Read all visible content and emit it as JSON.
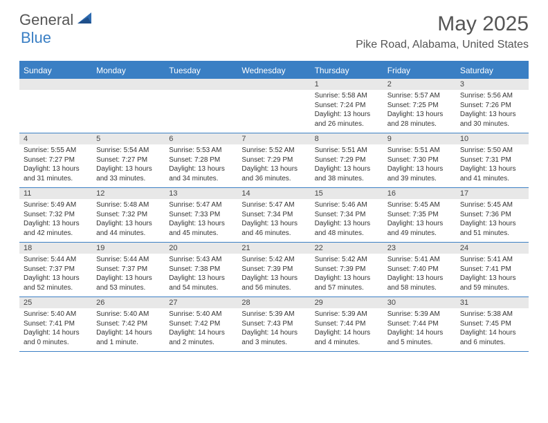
{
  "brand": {
    "part1": "General",
    "part2": "Blue"
  },
  "title": "May 2025",
  "location": "Pike Road, Alabama, United States",
  "colors": {
    "accent": "#3a7fc4",
    "dayBarBg": "#e8e8e8",
    "text": "#555555",
    "bodyText": "#333333"
  },
  "weekdays": [
    "Sunday",
    "Monday",
    "Tuesday",
    "Wednesday",
    "Thursday",
    "Friday",
    "Saturday"
  ],
  "weeks": [
    [
      {
        "n": "",
        "sr": "",
        "ss": "",
        "dl": ""
      },
      {
        "n": "",
        "sr": "",
        "ss": "",
        "dl": ""
      },
      {
        "n": "",
        "sr": "",
        "ss": "",
        "dl": ""
      },
      {
        "n": "",
        "sr": "",
        "ss": "",
        "dl": ""
      },
      {
        "n": "1",
        "sr": "Sunrise: 5:58 AM",
        "ss": "Sunset: 7:24 PM",
        "dl": "Daylight: 13 hours and 26 minutes."
      },
      {
        "n": "2",
        "sr": "Sunrise: 5:57 AM",
        "ss": "Sunset: 7:25 PM",
        "dl": "Daylight: 13 hours and 28 minutes."
      },
      {
        "n": "3",
        "sr": "Sunrise: 5:56 AM",
        "ss": "Sunset: 7:26 PM",
        "dl": "Daylight: 13 hours and 30 minutes."
      }
    ],
    [
      {
        "n": "4",
        "sr": "Sunrise: 5:55 AM",
        "ss": "Sunset: 7:27 PM",
        "dl": "Daylight: 13 hours and 31 minutes."
      },
      {
        "n": "5",
        "sr": "Sunrise: 5:54 AM",
        "ss": "Sunset: 7:27 PM",
        "dl": "Daylight: 13 hours and 33 minutes."
      },
      {
        "n": "6",
        "sr": "Sunrise: 5:53 AM",
        "ss": "Sunset: 7:28 PM",
        "dl": "Daylight: 13 hours and 34 minutes."
      },
      {
        "n": "7",
        "sr": "Sunrise: 5:52 AM",
        "ss": "Sunset: 7:29 PM",
        "dl": "Daylight: 13 hours and 36 minutes."
      },
      {
        "n": "8",
        "sr": "Sunrise: 5:51 AM",
        "ss": "Sunset: 7:29 PM",
        "dl": "Daylight: 13 hours and 38 minutes."
      },
      {
        "n": "9",
        "sr": "Sunrise: 5:51 AM",
        "ss": "Sunset: 7:30 PM",
        "dl": "Daylight: 13 hours and 39 minutes."
      },
      {
        "n": "10",
        "sr": "Sunrise: 5:50 AM",
        "ss": "Sunset: 7:31 PM",
        "dl": "Daylight: 13 hours and 41 minutes."
      }
    ],
    [
      {
        "n": "11",
        "sr": "Sunrise: 5:49 AM",
        "ss": "Sunset: 7:32 PM",
        "dl": "Daylight: 13 hours and 42 minutes."
      },
      {
        "n": "12",
        "sr": "Sunrise: 5:48 AM",
        "ss": "Sunset: 7:32 PM",
        "dl": "Daylight: 13 hours and 44 minutes."
      },
      {
        "n": "13",
        "sr": "Sunrise: 5:47 AM",
        "ss": "Sunset: 7:33 PM",
        "dl": "Daylight: 13 hours and 45 minutes."
      },
      {
        "n": "14",
        "sr": "Sunrise: 5:47 AM",
        "ss": "Sunset: 7:34 PM",
        "dl": "Daylight: 13 hours and 46 minutes."
      },
      {
        "n": "15",
        "sr": "Sunrise: 5:46 AM",
        "ss": "Sunset: 7:34 PM",
        "dl": "Daylight: 13 hours and 48 minutes."
      },
      {
        "n": "16",
        "sr": "Sunrise: 5:45 AM",
        "ss": "Sunset: 7:35 PM",
        "dl": "Daylight: 13 hours and 49 minutes."
      },
      {
        "n": "17",
        "sr": "Sunrise: 5:45 AM",
        "ss": "Sunset: 7:36 PM",
        "dl": "Daylight: 13 hours and 51 minutes."
      }
    ],
    [
      {
        "n": "18",
        "sr": "Sunrise: 5:44 AM",
        "ss": "Sunset: 7:37 PM",
        "dl": "Daylight: 13 hours and 52 minutes."
      },
      {
        "n": "19",
        "sr": "Sunrise: 5:44 AM",
        "ss": "Sunset: 7:37 PM",
        "dl": "Daylight: 13 hours and 53 minutes."
      },
      {
        "n": "20",
        "sr": "Sunrise: 5:43 AM",
        "ss": "Sunset: 7:38 PM",
        "dl": "Daylight: 13 hours and 54 minutes."
      },
      {
        "n": "21",
        "sr": "Sunrise: 5:42 AM",
        "ss": "Sunset: 7:39 PM",
        "dl": "Daylight: 13 hours and 56 minutes."
      },
      {
        "n": "22",
        "sr": "Sunrise: 5:42 AM",
        "ss": "Sunset: 7:39 PM",
        "dl": "Daylight: 13 hours and 57 minutes."
      },
      {
        "n": "23",
        "sr": "Sunrise: 5:41 AM",
        "ss": "Sunset: 7:40 PM",
        "dl": "Daylight: 13 hours and 58 minutes."
      },
      {
        "n": "24",
        "sr": "Sunrise: 5:41 AM",
        "ss": "Sunset: 7:41 PM",
        "dl": "Daylight: 13 hours and 59 minutes."
      }
    ],
    [
      {
        "n": "25",
        "sr": "Sunrise: 5:40 AM",
        "ss": "Sunset: 7:41 PM",
        "dl": "Daylight: 14 hours and 0 minutes."
      },
      {
        "n": "26",
        "sr": "Sunrise: 5:40 AM",
        "ss": "Sunset: 7:42 PM",
        "dl": "Daylight: 14 hours and 1 minute."
      },
      {
        "n": "27",
        "sr": "Sunrise: 5:40 AM",
        "ss": "Sunset: 7:42 PM",
        "dl": "Daylight: 14 hours and 2 minutes."
      },
      {
        "n": "28",
        "sr": "Sunrise: 5:39 AM",
        "ss": "Sunset: 7:43 PM",
        "dl": "Daylight: 14 hours and 3 minutes."
      },
      {
        "n": "29",
        "sr": "Sunrise: 5:39 AM",
        "ss": "Sunset: 7:44 PM",
        "dl": "Daylight: 14 hours and 4 minutes."
      },
      {
        "n": "30",
        "sr": "Sunrise: 5:39 AM",
        "ss": "Sunset: 7:44 PM",
        "dl": "Daylight: 14 hours and 5 minutes."
      },
      {
        "n": "31",
        "sr": "Sunrise: 5:38 AM",
        "ss": "Sunset: 7:45 PM",
        "dl": "Daylight: 14 hours and 6 minutes."
      }
    ]
  ]
}
